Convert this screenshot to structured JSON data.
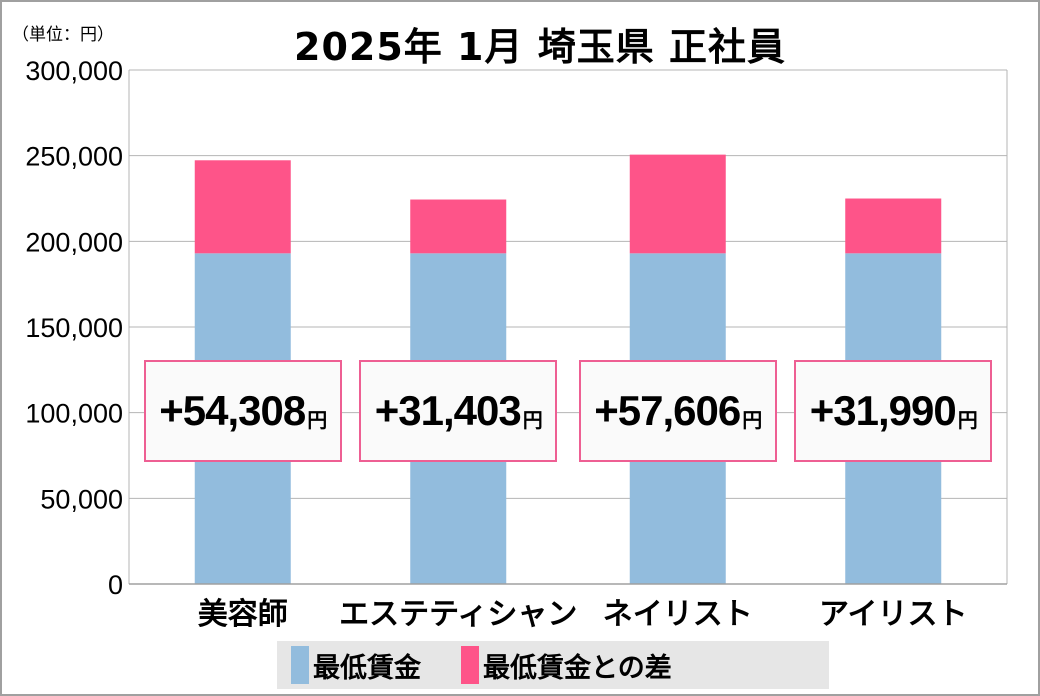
{
  "chart_data": {
    "type": "bar",
    "stacked": true,
    "title": "2025年 1月  埼玉県  正社員",
    "unit_label": "（単位：円）",
    "categories": [
      "美容師",
      "エステティシャン",
      "ネイリスト",
      "アイリスト"
    ],
    "series": [
      {
        "name": "最低賃金",
        "color": "#92bcdd",
        "values": [
          193000,
          193000,
          193000,
          193000
        ]
      },
      {
        "name": "最低賃金との差",
        "color": "#fe5489",
        "values": [
          54308,
          31403,
          57606,
          31990
        ]
      }
    ],
    "data_labels": [
      "+54,308",
      "+31,403",
      "+57,606",
      "+31,990"
    ],
    "data_label_unit": "円",
    "ylim": [
      0,
      300000
    ],
    "yticks": [
      "0",
      "50,000",
      "100,000",
      "150,000",
      "200,000",
      "250,000",
      "300,000"
    ],
    "grid": true,
    "legend_position": "bottom"
  }
}
